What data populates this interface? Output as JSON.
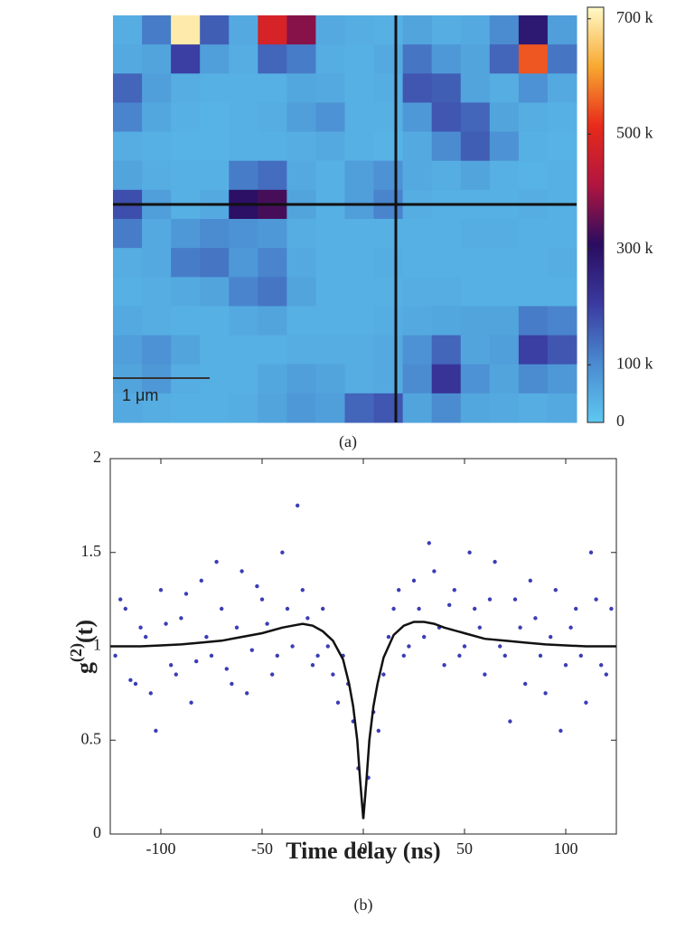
{
  "chart_data": [
    {
      "type": "heatmap",
      "label": "(a)",
      "scale_bar": "1 μm",
      "values": [
        [
          45,
          120,
          700,
          160,
          50,
          480,
          380,
          50,
          45,
          40,
          60,
          45,
          50,
          100,
          280,
          70
        ],
        [
          50,
          60,
          200,
          70,
          45,
          150,
          120,
          45,
          40,
          50,
          130,
          80,
          60,
          150,
          550,
          130
        ],
        [
          150,
          70,
          45,
          40,
          40,
          40,
          55,
          50,
          40,
          45,
          170,
          160,
          60,
          45,
          90,
          50
        ],
        [
          110,
          55,
          40,
          35,
          40,
          45,
          70,
          90,
          40,
          40,
          80,
          170,
          150,
          60,
          45,
          40
        ],
        [
          45,
          40,
          35,
          35,
          40,
          40,
          45,
          50,
          40,
          35,
          50,
          100,
          160,
          90,
          40,
          35
        ],
        [
          60,
          45,
          40,
          40,
          120,
          140,
          50,
          40,
          70,
          90,
          50,
          45,
          60,
          40,
          35,
          40
        ],
        [
          180,
          70,
          40,
          50,
          300,
          330,
          60,
          40,
          70,
          110,
          45,
          40,
          40,
          40,
          45,
          40
        ],
        [
          120,
          50,
          80,
          100,
          90,
          80,
          45,
          40,
          40,
          40,
          40,
          40,
          45,
          45,
          40,
          40
        ],
        [
          45,
          50,
          120,
          130,
          80,
          110,
          50,
          40,
          40,
          45,
          40,
          40,
          40,
          40,
          40,
          45
        ],
        [
          40,
          45,
          50,
          60,
          110,
          130,
          60,
          40,
          40,
          40,
          45,
          45,
          40,
          40,
          40,
          40
        ],
        [
          50,
          45,
          40,
          40,
          50,
          60,
          40,
          40,
          40,
          45,
          50,
          55,
          60,
          60,
          120,
          110
        ],
        [
          70,
          90,
          60,
          40,
          40,
          40,
          45,
          45,
          45,
          50,
          90,
          150,
          60,
          70,
          200,
          170
        ],
        [
          60,
          80,
          45,
          40,
          40,
          55,
          70,
          60,
          45,
          50,
          100,
          220,
          90,
          60,
          100,
          80
        ],
        [
          50,
          45,
          40,
          40,
          45,
          60,
          80,
          70,
          150,
          170,
          60,
          100,
          55,
          50,
          45,
          50
        ]
      ],
      "colormap": [
        "#5ec8f0",
        "#4a8ad0",
        "#3a3aa0",
        "#2a0c60",
        "#b01540",
        "#e82a1a",
        "#f8a830",
        "#fffac8"
      ],
      "clim": [
        0,
        720
      ],
      "cticks": [
        {
          "value": 700,
          "label": "700 k"
        },
        {
          "value": 500,
          "label": "500 k"
        },
        {
          "value": 300,
          "label": "300 k"
        },
        {
          "value": 100,
          "label": "100 k"
        },
        0
      ]
    },
    {
      "type": "scatter",
      "label": "(b)",
      "xlabel": "Time delay (ns)",
      "ylabel": {
        "base": "g",
        "sup": "(2)",
        "rest": "(t)"
      },
      "xlim": [
        -125,
        125
      ],
      "ylim": [
        0,
        2
      ],
      "xticks": [
        -100,
        -50,
        0,
        50,
        100
      ],
      "yticks": [
        0,
        0.5,
        1,
        1.5,
        2
      ],
      "points": {
        "color": "#3b3db5",
        "x": [
          -120,
          -115,
          -110,
          -105,
          -100,
          -95,
          -90,
          -85,
          -80,
          -75,
          -70,
          -65,
          -60,
          -55,
          -50,
          -45,
          -40,
          -35,
          -30,
          -25,
          -20,
          -15,
          -10,
          -5,
          0,
          5,
          10,
          15,
          20,
          25,
          30,
          35,
          40,
          45,
          50,
          55,
          60,
          65,
          70,
          75,
          80,
          85,
          90,
          95,
          100,
          105,
          110,
          115,
          120,
          -122.5,
          -117.5,
          -112.5,
          -107.5,
          -102.5,
          -97.5,
          -92.5,
          -87.5,
          -82.5,
          -77.5,
          -72.5,
          -67.5,
          -62.5,
          -57.5,
          -52.5,
          -47.5,
          -42.5,
          -37.5,
          -32.5,
          -27.5,
          -22.5,
          -17.5,
          -12.5,
          -7.5,
          -2.5,
          2.5,
          7.5,
          12.5,
          17.5,
          22.5,
          27.5,
          32.5,
          37.5,
          42.5,
          47.5,
          52.5,
          57.5,
          62.5,
          67.5,
          72.5,
          77.5,
          82.5,
          87.5,
          92.5,
          97.5,
          102.5,
          107.5,
          112.5,
          117.5,
          122.5
        ],
        "values": [
          1.25,
          0.82,
          1.1,
          0.75,
          1.3,
          0.9,
          1.15,
          0.7,
          1.35,
          0.95,
          1.2,
          0.8,
          1.4,
          0.98,
          1.25,
          0.85,
          1.5,
          1.0,
          1.3,
          0.9,
          1.2,
          0.85,
          0.95,
          0.6,
          0.15,
          0.65,
          0.85,
          1.2,
          0.95,
          1.35,
          1.05,
          1.4,
          0.9,
          1.3,
          1.0,
          1.2,
          0.85,
          1.45,
          0.95,
          1.25,
          0.8,
          1.15,
          0.75,
          1.3,
          0.9,
          1.2,
          0.7,
          1.25,
          0.85,
          0.95,
          1.2,
          0.8,
          1.05,
          0.55,
          1.12,
          0.85,
          1.28,
          0.92,
          1.05,
          1.45,
          0.88,
          1.1,
          0.75,
          1.32,
          1.12,
          0.95,
          1.2,
          1.75,
          1.15,
          0.95,
          1.0,
          0.7,
          0.8,
          0.35,
          0.3,
          0.55,
          1.05,
          1.3,
          1.0,
          1.2,
          1.55,
          1.1,
          1.22,
          0.95,
          1.5,
          1.1,
          1.25,
          1.0,
          0.6,
          1.1,
          1.35,
          0.95,
          1.05,
          0.55,
          1.1,
          0.95,
          1.5,
          0.9,
          1.2
        ]
      },
      "fit": {
        "color": "#111111",
        "x": [
          -125,
          -110,
          -100,
          -90,
          -80,
          -70,
          -60,
          -50,
          -40,
          -35,
          -30,
          -25,
          -20,
          -15,
          -10,
          -7,
          -5,
          -3,
          -1.5,
          0,
          1.5,
          3,
          5,
          7,
          10,
          15,
          20,
          25,
          30,
          35,
          40,
          50,
          60,
          70,
          80,
          90,
          100,
          110,
          125
        ],
        "values": [
          1.0,
          1.0,
          1.005,
          1.01,
          1.02,
          1.03,
          1.05,
          1.07,
          1.1,
          1.11,
          1.12,
          1.11,
          1.08,
          1.03,
          0.93,
          0.8,
          0.68,
          0.5,
          0.28,
          0.08,
          0.28,
          0.5,
          0.68,
          0.8,
          0.94,
          1.06,
          1.11,
          1.13,
          1.13,
          1.12,
          1.1,
          1.07,
          1.04,
          1.03,
          1.02,
          1.01,
          1.005,
          1.0,
          1.0
        ]
      }
    }
  ]
}
